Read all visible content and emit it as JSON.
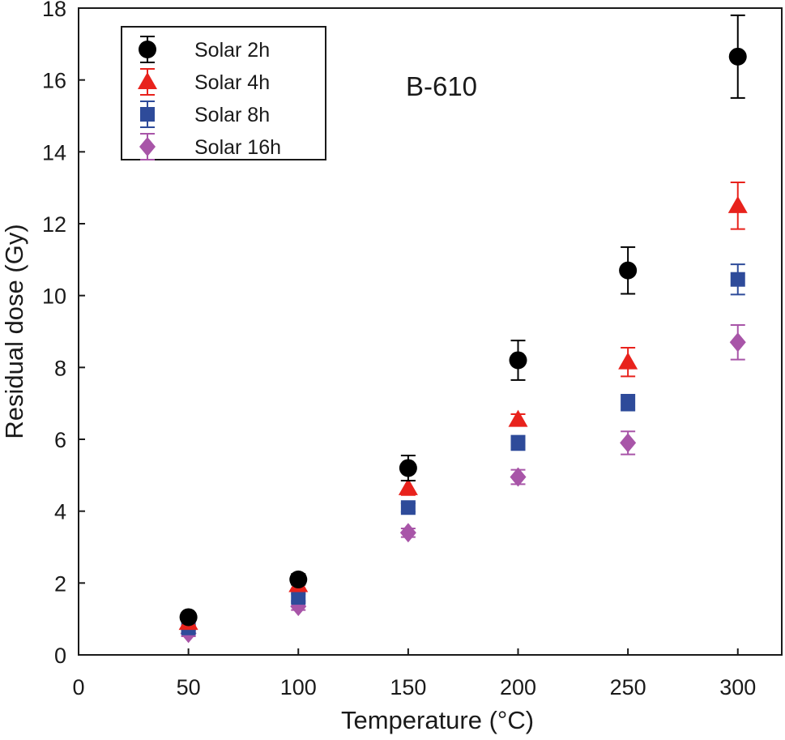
{
  "chart_data": {
    "type": "scatter",
    "annotation": "B-610",
    "xlabel": "Temperature (°C)",
    "ylabel": "Residual dose (Gy)",
    "xlim": [
      0,
      320
    ],
    "ylim": [
      0,
      18
    ],
    "xticks": [
      0,
      50,
      100,
      150,
      200,
      250,
      300
    ],
    "yticks": [
      0,
      2,
      4,
      6,
      8,
      10,
      12,
      14,
      16,
      18
    ],
    "x": [
      50,
      100,
      150,
      200,
      250,
      300
    ],
    "grid": false,
    "legend_position": "top-left",
    "error_bars": true,
    "series": [
      {
        "name": "Solar 2h",
        "marker": "circle",
        "color": "#000000",
        "y": [
          1.05,
          2.1,
          5.2,
          8.2,
          10.7,
          16.65
        ],
        "err": [
          0.1,
          0.15,
          0.35,
          0.55,
          0.65,
          1.15
        ]
      },
      {
        "name": "Solar 4h",
        "marker": "triangle",
        "color": "#e8221c",
        "y": [
          0.9,
          1.95,
          4.65,
          6.55,
          8.15,
          12.5
        ],
        "err": [
          0.1,
          0.15,
          0.2,
          0.15,
          0.4,
          0.65
        ]
      },
      {
        "name": "Solar 8h",
        "marker": "square",
        "color": "#2e4b9a",
        "y": [
          0.75,
          1.6,
          4.1,
          5.9,
          7.02,
          10.45
        ],
        "err": [
          0.08,
          0.1,
          0.12,
          0.2,
          0.22,
          0.42
        ]
      },
      {
        "name": "Solar 16h",
        "marker": "diamond",
        "color": "#a855a8",
        "y": [
          0.6,
          1.35,
          3.4,
          4.95,
          5.9,
          8.7
        ],
        "err": [
          0.08,
          0.1,
          0.12,
          0.2,
          0.32,
          0.48
        ]
      }
    ]
  }
}
